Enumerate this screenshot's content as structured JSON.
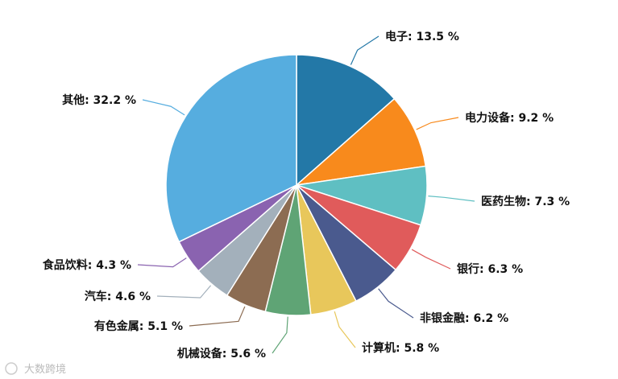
{
  "chart_data": {
    "type": "pie",
    "title": "",
    "unit": "%",
    "slices": [
      {
        "name": "电子",
        "value": 13.5,
        "label": "电子: 13.5 %",
        "color": "#2378a7"
      },
      {
        "name": "电力设备",
        "value": 9.2,
        "label": "电力设备: 9.2 %",
        "color": "#f88a1c"
      },
      {
        "name": "医药生物",
        "value": 7.3,
        "label": "医药生物: 7.3 %",
        "color": "#5fbfc2"
      },
      {
        "name": "银行",
        "value": 6.3,
        "label": "银行: 6.3 %",
        "color": "#e05b5b"
      },
      {
        "name": "非银金融",
        "value": 6.2,
        "label": "非银金融: 6.2 %",
        "color": "#4a5a8e"
      },
      {
        "name": "计算机",
        "value": 5.8,
        "label": "计算机: 5.8 %",
        "color": "#e8c75b"
      },
      {
        "name": "机械设备",
        "value": 5.6,
        "label": "机械设备: 5.6 %",
        "color": "#5fa475"
      },
      {
        "name": "有色金属",
        "value": 5.1,
        "label": "有色金属: 5.1 %",
        "color": "#8c6c52"
      },
      {
        "name": "汽车",
        "value": 4.6,
        "label": "汽车: 4.6 %",
        "color": "#a3b0bb"
      },
      {
        "name": "食品饮料",
        "value": 4.3,
        "label": "食品饮料: 4.3 %",
        "color": "#8a63b0"
      },
      {
        "name": "其他",
        "value": 32.2,
        "label": "其他: 32.2 %",
        "color": "#56addf"
      }
    ]
  },
  "watermark": {
    "text": "大数跨境"
  }
}
